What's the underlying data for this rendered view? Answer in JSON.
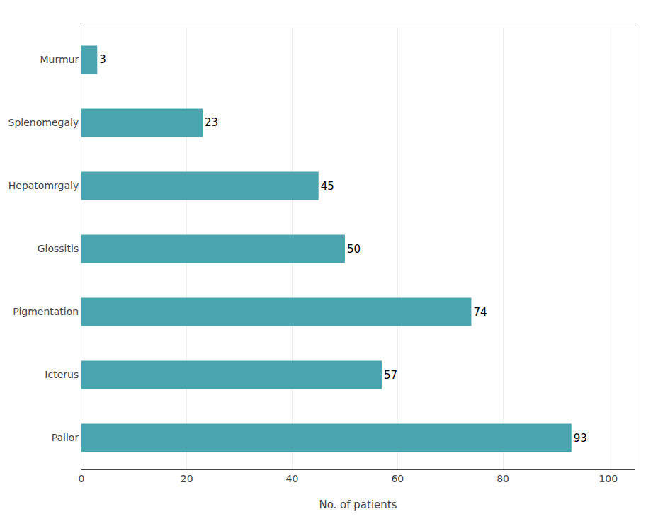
{
  "chart_data": {
    "type": "bar",
    "orientation": "horizontal",
    "categories": [
      "Pallor",
      "Icterus",
      "Pigmentation",
      "Glossitis",
      "Hepatomrgaly",
      "Splenomegaly",
      "Murmur"
    ],
    "values": [
      93,
      57,
      74,
      50,
      45,
      23,
      3
    ],
    "color": "#4aa5b0",
    "xlabel": "No. of patients",
    "xlim": [
      0,
      105
    ],
    "xticks": [
      0,
      20,
      40,
      60,
      80,
      100
    ],
    "grid": true,
    "data_labels": true
  }
}
